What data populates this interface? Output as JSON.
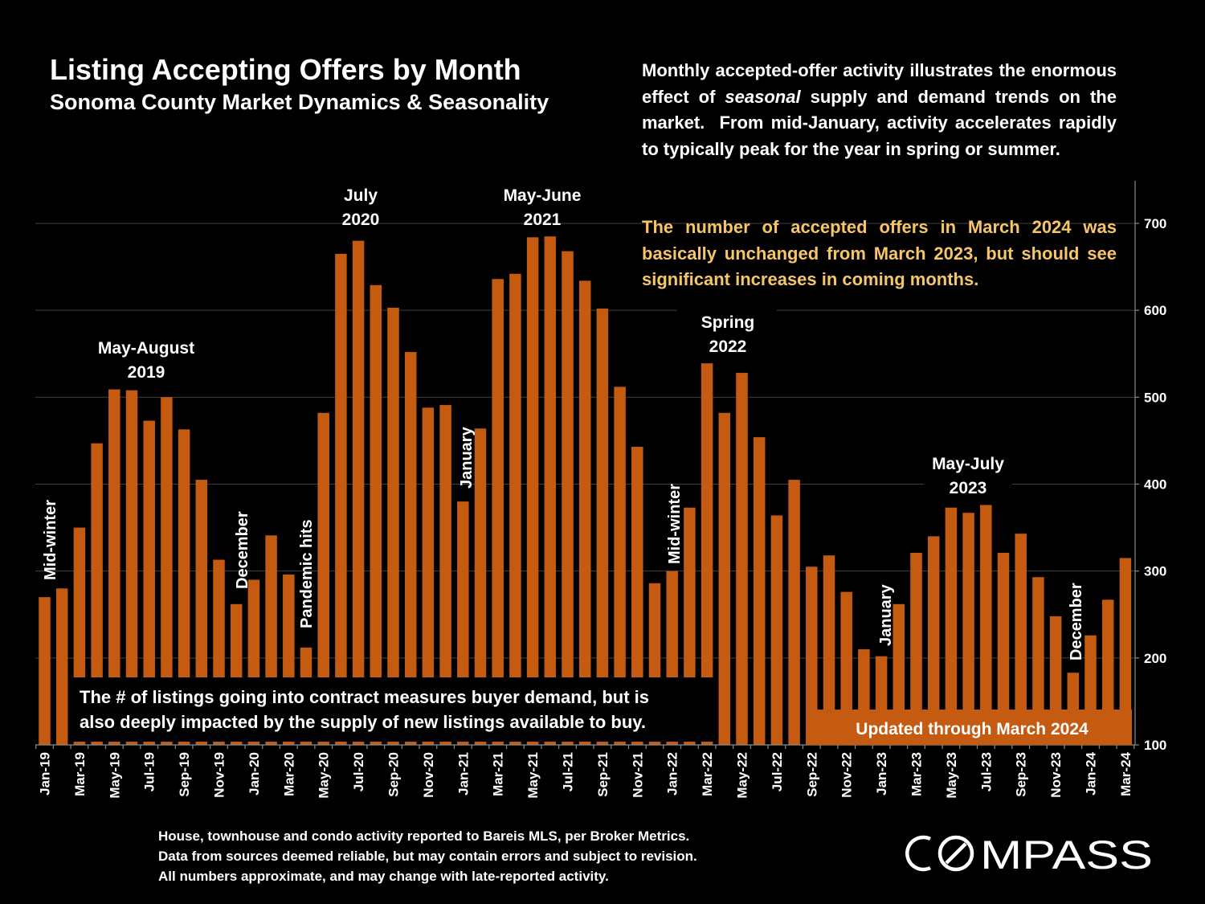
{
  "title": "Listing Accepting Offers by Month",
  "subtitle": "Sonoma County Market Dynamics & Seasonality",
  "commentary": {
    "para1_html": "Monthly accepted-offer activity illustrates the enormous effect of <i>seasonal</i> supply and demand trends on the market.&nbsp; From mid-January, activity accelerates rapidly to typically peak for the year in spring or summer.",
    "para2": "The number of accepted offers in March 2024 was basically unchanged from March 2023, but should see significant increases in coming months."
  },
  "footnote": [
    "House, townhouse and condo activity reported to Bareis MLS, per Broker Metrics.",
    "Data from sources deemed reliable, but may contain errors and subject to revision.",
    "All numbers approximate, and may change with late-reported activity."
  ],
  "logo_text": "COMPASS",
  "colors": {
    "bar": "#c55a11",
    "background": "#000000",
    "highlight_text": "#f6c56a"
  },
  "chart_data": {
    "type": "bar",
    "title": "Listing Accepting Offers by Month",
    "subtitle": "Sonoma County Market Dynamics & Seasonality",
    "xlabel": "",
    "ylabel": "",
    "y_axis_side": "right",
    "ylim": [
      100,
      750
    ],
    "yticks": [
      100,
      200,
      300,
      400,
      500,
      600,
      700
    ],
    "grid": true,
    "categories": [
      "Jan-19",
      "Feb-19",
      "Mar-19",
      "Apr-19",
      "May-19",
      "Jun-19",
      "Jul-19",
      "Aug-19",
      "Sep-19",
      "Oct-19",
      "Nov-19",
      "Dec-19",
      "Jan-20",
      "Feb-20",
      "Mar-20",
      "Apr-20",
      "May-20",
      "Jun-20",
      "Jul-20",
      "Aug-20",
      "Sep-20",
      "Oct-20",
      "Nov-20",
      "Dec-20",
      "Jan-21",
      "Feb-21",
      "Mar-21",
      "Apr-21",
      "May-21",
      "Jun-21",
      "Jul-21",
      "Aug-21",
      "Sep-21",
      "Oct-21",
      "Nov-21",
      "Dec-21",
      "Jan-22",
      "Feb-22",
      "Mar-22",
      "Apr-22",
      "May-22",
      "Jun-22",
      "Jul-22",
      "Aug-22",
      "Sep-22",
      "Oct-22",
      "Nov-22",
      "Dec-22",
      "Jan-23",
      "Feb-23",
      "Mar-23",
      "Apr-23",
      "May-23",
      "Jun-23",
      "Jul-23",
      "Aug-23",
      "Sep-23",
      "Oct-23",
      "Nov-23",
      "Dec-23",
      "Jan-24",
      "Feb-24",
      "Mar-24"
    ],
    "values": [
      270,
      280,
      350,
      447,
      509,
      508,
      473,
      500,
      463,
      405,
      313,
      262,
      290,
      341,
      296,
      212,
      482,
      665,
      680,
      629,
      603,
      552,
      488,
      491,
      380,
      464,
      636,
      642,
      684,
      685,
      668,
      634,
      602,
      512,
      443,
      286,
      300,
      373,
      539,
      482,
      528,
      454,
      364,
      405,
      305,
      318,
      276,
      210,
      202,
      262,
      321,
      340,
      373,
      367,
      376,
      321,
      343,
      293,
      248,
      183,
      226,
      267,
      315
    ],
    "tick_labels_shown": [
      "Jan-19",
      "Mar-19",
      "May-19",
      "Jul-19",
      "Sep-19",
      "Nov-19",
      "Jan-20",
      "Mar-20",
      "May-20",
      "Jul-20",
      "Sep-20",
      "Nov-20",
      "Jan-21",
      "Mar-21",
      "May-21",
      "Jul-21",
      "Sep-21",
      "Nov-21",
      "Jan-22",
      "Mar-22",
      "May-22",
      "Jul-22",
      "Sep-22",
      "Nov-22",
      "Jan-23",
      "Mar-23",
      "May-23",
      "Jul-23",
      "Sep-23",
      "Nov-23",
      "Jan-24",
      "Mar-24"
    ],
    "annotations": [
      {
        "text": [
          "May-August",
          "2019"
        ],
        "orientation": "horizontal",
        "at": "May-19 to Aug-19"
      },
      {
        "text": [
          "July",
          "2020"
        ],
        "orientation": "horizontal",
        "at": "Jul-20"
      },
      {
        "text": [
          "May-June",
          "2021"
        ],
        "orientation": "horizontal",
        "at": "May-21 to Jun-21"
      },
      {
        "text": [
          "Spring",
          "2022"
        ],
        "orientation": "horizontal",
        "at": "Mar-22 to Apr-22"
      },
      {
        "text": [
          "May-July",
          "2023"
        ],
        "orientation": "horizontal",
        "at": "May-23 to Jul-23"
      },
      {
        "text": [
          "Mid-winter"
        ],
        "orientation": "vertical",
        "at": "Jan-19"
      },
      {
        "text": [
          "December"
        ],
        "orientation": "vertical",
        "at": "Dec-19"
      },
      {
        "text": [
          "Pandemic hits"
        ],
        "orientation": "vertical",
        "at": "Apr-20"
      },
      {
        "text": [
          "January"
        ],
        "orientation": "vertical",
        "at": "Jan-21"
      },
      {
        "text": [
          "Mid-winter"
        ],
        "orientation": "vertical",
        "at": "Dec-21 to Jan-22"
      },
      {
        "text": [
          "January"
        ],
        "orientation": "vertical",
        "at": "Jan-23"
      },
      {
        "text": [
          "December"
        ],
        "orientation": "vertical",
        "at": "Dec-23"
      }
    ],
    "callouts": {
      "note_box": [
        "The # of listings going into contract measures buyer demand, but is",
        "also deeply impacted by the supply of new listings available to buy."
      ],
      "updated": "Updated through March 2024"
    }
  }
}
